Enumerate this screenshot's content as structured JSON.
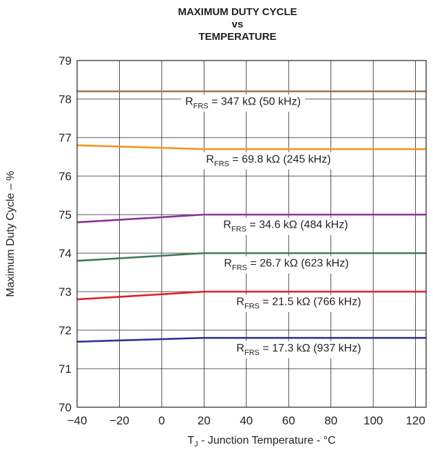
{
  "chart_data": {
    "type": "line",
    "title_lines": [
      "MAXIMUM DUTY CYCLE",
      "vs",
      "TEMPERATURE"
    ],
    "xlabel": {
      "main": "T",
      "sub": "J",
      "rest": " - Junction Temperature - °C"
    },
    "ylabel": "Maximum Duty Cycle – %",
    "xlim": [
      -40,
      125
    ],
    "ylim": [
      70,
      79
    ],
    "x_ticks": [
      "−40",
      "−20",
      "0",
      "20",
      "40",
      "60",
      "80",
      "100",
      "120"
    ],
    "x_tick_values": [
      -40,
      -20,
      0,
      20,
      40,
      60,
      80,
      100,
      120
    ],
    "y_ticks": [
      "70",
      "71",
      "72",
      "73",
      "74",
      "75",
      "76",
      "77",
      "78",
      "79"
    ],
    "y_tick_values": [
      70,
      71,
      72,
      73,
      74,
      75,
      76,
      77,
      78,
      79
    ],
    "grid": true,
    "series": [
      {
        "color": "#a07a5a",
        "x": [
          -40,
          20,
          125
        ],
        "y": [
          78.2,
          78.2,
          78.2
        ],
        "label": {
          "R": "R",
          "sub": "FRS",
          "text": " = 347 kΩ (50 kHz)"
        }
      },
      {
        "color": "#f7941d",
        "x": [
          -40,
          20,
          125
        ],
        "y": [
          76.8,
          76.7,
          76.7
        ],
        "label": {
          "R": "R",
          "sub": "FRS",
          "text": " = 69.8 kΩ (245 kHz)"
        }
      },
      {
        "color": "#8a2f9a",
        "x": [
          -40,
          20,
          125
        ],
        "y": [
          74.8,
          75.0,
          75.0
        ],
        "label": {
          "R": "R",
          "sub": "FRS",
          "text": " = 34.6 kΩ (484 kHz)"
        }
      },
      {
        "color": "#3f7a55",
        "x": [
          -40,
          20,
          125
        ],
        "y": [
          73.8,
          74.0,
          74.0
        ],
        "label": {
          "R": "R",
          "sub": "FRS",
          "text": " = 26.7 kΩ (623 kHz)"
        }
      },
      {
        "color": "#e21e26",
        "x": [
          -40,
          20,
          125
        ],
        "y": [
          72.8,
          73.0,
          73.0
        ],
        "label": {
          "R": "R",
          "sub": "FRS",
          "text": " = 21.5 kΩ (766 kHz)"
        }
      },
      {
        "color": "#2e3192",
        "x": [
          -40,
          20,
          125
        ],
        "y": [
          71.7,
          71.8,
          71.8
        ],
        "label": {
          "R": "R",
          "sub": "FRS",
          "text": " = 17.3 kΩ (937 kHz)"
        }
      }
    ]
  }
}
